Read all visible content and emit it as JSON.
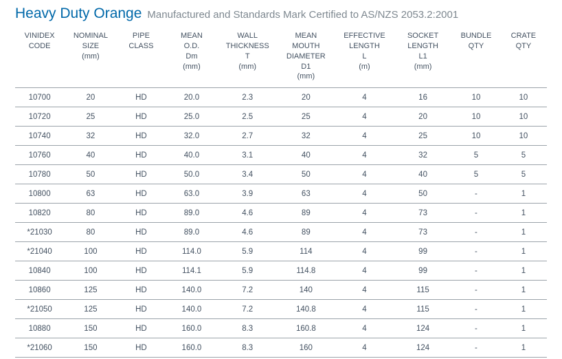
{
  "header": {
    "title": "Heavy Duty Orange",
    "subtitle": "Manufactured and Standards Mark Certified to AS/NZS 2053.2:2001"
  },
  "table": {
    "columns": [
      {
        "lines": [
          "VINIDEX",
          "CODE"
        ],
        "width": "9.2%"
      },
      {
        "lines": [
          "NOMINAL",
          "SIZE",
          "(mm)"
        ],
        "width": "10%"
      },
      {
        "lines": [
          "PIPE",
          "CLASS"
        ],
        "width": "9%"
      },
      {
        "lines": [
          "MEAN",
          "O.D.",
          "Dm",
          "(mm)"
        ],
        "width": "10%"
      },
      {
        "lines": [
          "WALL",
          "THICKNESS",
          "T",
          "(mm)"
        ],
        "width": "11%"
      },
      {
        "lines": [
          "MEAN",
          "MOUTH",
          "DIAMETER",
          "D1",
          "(mm)"
        ],
        "width": "11%"
      },
      {
        "lines": [
          "EFFECTIVE",
          "LENGTH",
          "L",
          "(m)"
        ],
        "width": "11%"
      },
      {
        "lines": [
          "SOCKET",
          "LENGTH",
          "L1",
          "(mm)"
        ],
        "width": "11%"
      },
      {
        "lines": [
          "BUNDLE",
          "QTY"
        ],
        "width": "9%"
      },
      {
        "lines": [
          "CRATE",
          "QTY"
        ],
        "width": "8.8%"
      }
    ],
    "rows": [
      [
        "10700",
        "20",
        "HD",
        "20.0",
        "2.3",
        "20",
        "4",
        "16",
        "10",
        "10"
      ],
      [
        "10720",
        "25",
        "HD",
        "25.0",
        "2.5",
        "25",
        "4",
        "20",
        "10",
        "10"
      ],
      [
        "10740",
        "32",
        "HD",
        "32.0",
        "2.7",
        "32",
        "4",
        "25",
        "10",
        "10"
      ],
      [
        "10760",
        "40",
        "HD",
        "40.0",
        "3.1",
        "40",
        "4",
        "32",
        "5",
        "5"
      ],
      [
        "10780",
        "50",
        "HD",
        "50.0",
        "3.4",
        "50",
        "4",
        "40",
        "5",
        "5"
      ],
      [
        "10800",
        "63",
        "HD",
        "63.0",
        "3.9",
        "63",
        "4",
        "50",
        "-",
        "1"
      ],
      [
        "10820",
        "80",
        "HD",
        "89.0",
        "4.6",
        "89",
        "4",
        "73",
        "-",
        "1"
      ],
      [
        "*21030",
        "80",
        "HD",
        "89.0",
        "4.6",
        "89",
        "4",
        "73",
        "-",
        "1"
      ],
      [
        "*21040",
        "100",
        "HD",
        "114.0",
        "5.9",
        "114",
        "4",
        "99",
        "-",
        "1"
      ],
      [
        "10840",
        "100",
        "HD",
        "114.1",
        "5.9",
        "114.8",
        "4",
        "99",
        "-",
        "1"
      ],
      [
        "10860",
        "125",
        "HD",
        "140.0",
        "7.2",
        "140",
        "4",
        "115",
        "-",
        "1"
      ],
      [
        "*21050",
        "125",
        "HD",
        "140.0",
        "7.2",
        "140.8",
        "4",
        "115",
        "-",
        "1"
      ],
      [
        "10880",
        "150",
        "HD",
        "160.0",
        "8.3",
        "160.8",
        "4",
        "124",
        "-",
        "1"
      ],
      [
        "*21060",
        "150",
        "HD",
        "160.0",
        "8.3",
        "160",
        "4",
        "124",
        "-",
        "1"
      ]
    ]
  },
  "style": {
    "title_color": "#0068a9",
    "subtitle_color": "#7e8890",
    "text_color": "#425060",
    "border_color": "#9aa2a9",
    "background_color": "#ffffff",
    "title_fontsize": 21,
    "subtitle_fontsize": 15,
    "header_fontsize": 11,
    "cell_fontsize": 11.5
  }
}
